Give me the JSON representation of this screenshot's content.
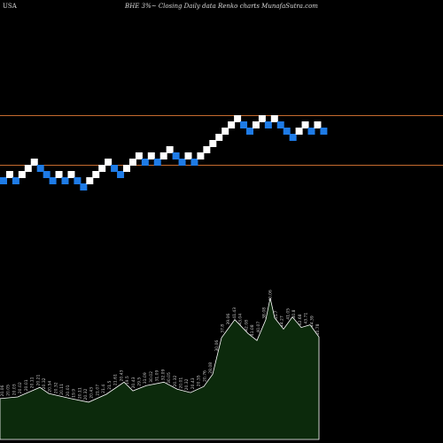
{
  "header": {
    "region": "USA",
    "caption": "BHE 3%~  Closing Daily data  Renko  charts MunafaSutra.com"
  },
  "colors": {
    "background": "#000000",
    "up_brick": "#ffffff",
    "down_brick": "#1e7be6",
    "reference_line": "#c46a2e",
    "volume_fill": "#0c2a0c",
    "volume_stroke": "#ffffff",
    "price_label": "#c8c8c8"
  },
  "chart_data": {
    "type": "renko",
    "title": "BHE 3%~  Closing Daily data  Renko  charts MunafaSutra.com",
    "bricks": [
      {
        "i": 0,
        "level": 0,
        "dir": "down"
      },
      {
        "i": 1,
        "level": 1,
        "dir": "up"
      },
      {
        "i": 2,
        "level": 0,
        "dir": "down"
      },
      {
        "i": 3,
        "level": 1,
        "dir": "up"
      },
      {
        "i": 4,
        "level": 2,
        "dir": "up"
      },
      {
        "i": 5,
        "level": 3,
        "dir": "up"
      },
      {
        "i": 6,
        "level": 2,
        "dir": "down"
      },
      {
        "i": 7,
        "level": 1,
        "dir": "down"
      },
      {
        "i": 8,
        "level": 0,
        "dir": "down"
      },
      {
        "i": 9,
        "level": 1,
        "dir": "up"
      },
      {
        "i": 10,
        "level": 0,
        "dir": "down"
      },
      {
        "i": 11,
        "level": 1,
        "dir": "up"
      },
      {
        "i": 12,
        "level": 0,
        "dir": "down"
      },
      {
        "i": 13,
        "level": -1,
        "dir": "down"
      },
      {
        "i": 14,
        "level": 0,
        "dir": "up"
      },
      {
        "i": 15,
        "level": 1,
        "dir": "up"
      },
      {
        "i": 16,
        "level": 2,
        "dir": "up"
      },
      {
        "i": 17,
        "level": 3,
        "dir": "up"
      },
      {
        "i": 18,
        "level": 2,
        "dir": "down"
      },
      {
        "i": 19,
        "level": 1,
        "dir": "down"
      },
      {
        "i": 20,
        "level": 2,
        "dir": "up"
      },
      {
        "i": 21,
        "level": 3,
        "dir": "up"
      },
      {
        "i": 22,
        "level": 4,
        "dir": "up"
      },
      {
        "i": 23,
        "level": 3,
        "dir": "down"
      },
      {
        "i": 24,
        "level": 4,
        "dir": "up"
      },
      {
        "i": 25,
        "level": 3,
        "dir": "down"
      },
      {
        "i": 26,
        "level": 4,
        "dir": "up"
      },
      {
        "i": 27,
        "level": 5,
        "dir": "up"
      },
      {
        "i": 28,
        "level": 4,
        "dir": "down"
      },
      {
        "i": 29,
        "level": 3,
        "dir": "down"
      },
      {
        "i": 30,
        "level": 4,
        "dir": "up"
      },
      {
        "i": 31,
        "level": 3,
        "dir": "down"
      },
      {
        "i": 32,
        "level": 4,
        "dir": "up"
      },
      {
        "i": 33,
        "level": 5,
        "dir": "up"
      },
      {
        "i": 34,
        "level": 6,
        "dir": "up"
      },
      {
        "i": 35,
        "level": 7,
        "dir": "up"
      },
      {
        "i": 36,
        "level": 8,
        "dir": "up"
      },
      {
        "i": 37,
        "level": 9,
        "dir": "up"
      },
      {
        "i": 38,
        "level": 10,
        "dir": "up"
      },
      {
        "i": 39,
        "level": 9,
        "dir": "down"
      },
      {
        "i": 40,
        "level": 8,
        "dir": "down"
      },
      {
        "i": 41,
        "level": 9,
        "dir": "up"
      },
      {
        "i": 42,
        "level": 10,
        "dir": "up"
      },
      {
        "i": 43,
        "level": 9,
        "dir": "down"
      },
      {
        "i": 44,
        "level": 10,
        "dir": "up"
      },
      {
        "i": 45,
        "level": 9,
        "dir": "down"
      },
      {
        "i": 46,
        "level": 8,
        "dir": "down"
      },
      {
        "i": 47,
        "level": 7,
        "dir": "down"
      },
      {
        "i": 48,
        "level": 8,
        "dir": "up"
      },
      {
        "i": 49,
        "level": 9,
        "dir": "up"
      },
      {
        "i": 50,
        "level": 8,
        "dir": "down"
      },
      {
        "i": 51,
        "level": 9,
        "dir": "up"
      },
      {
        "i": 52,
        "level": 8,
        "dir": "down"
      }
    ],
    "reference_lines": [
      {
        "level": 10.5
      },
      {
        "level": 2.5
      }
    ],
    "volume_area": [
      {
        "x": 0,
        "y": 4.7
      },
      {
        "x": 20,
        "y": 4.9
      },
      {
        "x": 45,
        "y": 6.0
      },
      {
        "x": 55,
        "y": 5.3
      },
      {
        "x": 80,
        "y": 4.7
      },
      {
        "x": 100,
        "y": 4.3
      },
      {
        "x": 120,
        "y": 5.2
      },
      {
        "x": 140,
        "y": 6.6
      },
      {
        "x": 150,
        "y": 5.6
      },
      {
        "x": 165,
        "y": 6.2
      },
      {
        "x": 185,
        "y": 6.6
      },
      {
        "x": 200,
        "y": 5.8
      },
      {
        "x": 215,
        "y": 5.4
      },
      {
        "x": 230,
        "y": 6.1
      },
      {
        "x": 240,
        "y": 7.5
      },
      {
        "x": 250,
        "y": 11.7
      },
      {
        "x": 265,
        "y": 13.8
      },
      {
        "x": 280,
        "y": 12.2
      },
      {
        "x": 290,
        "y": 11.4
      },
      {
        "x": 300,
        "y": 13.8
      },
      {
        "x": 305,
        "y": 16.3
      },
      {
        "x": 310,
        "y": 14.0
      },
      {
        "x": 320,
        "y": 12.7
      },
      {
        "x": 330,
        "y": 14.1
      },
      {
        "x": 340,
        "y": 12.9
      },
      {
        "x": 350,
        "y": 13.2
      },
      {
        "x": 360,
        "y": 11.8
      }
    ],
    "volume_max": 20,
    "price_labels": [
      "20.06",
      "20.05",
      "20.03",
      "20.02",
      "20.01",
      "20.11",
      "20.21",
      "20.32",
      "20.54",
      "20.32",
      "20.11",
      "20.01",
      "19.9",
      "20.11",
      "20.32",
      "20.43",
      "21.07",
      "21.4",
      "21.5",
      "21.61",
      "20.43",
      "19.5",
      "20.43",
      "29.5",
      "31.09",
      "30.02",
      "31.09",
      "32.09",
      "30.05",
      "20.32",
      "20.01",
      "20.32",
      "20.43",
      "20.55",
      "20.76",
      "28.08",
      "30.06",
      "37.8",
      "39.06",
      "41.43",
      "43.04",
      "42.08",
      "41.08",
      "40.07",
      "38.08",
      "40.06",
      "45.7",
      "44.27",
      "41.05",
      "40.8",
      "42.68",
      "43.71",
      "44.39",
      "40.78"
    ]
  }
}
